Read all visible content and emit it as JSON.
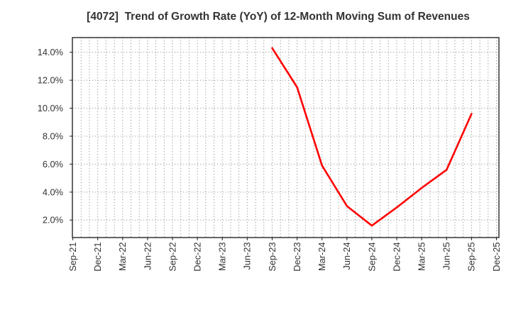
{
  "chart_data": {
    "type": "line",
    "title": "[4072]  Trend of Growth Rate (YoY) of 12-Month Moving Sum of Revenues",
    "x_tick_labels": [
      "Sep-21",
      "Dec-21",
      "Mar-22",
      "Jun-22",
      "Sep-22",
      "Dec-22",
      "Mar-23",
      "Jun-23",
      "Sep-23",
      "Dec-23",
      "Mar-24",
      "Jun-24",
      "Sep-24",
      "Dec-24",
      "Mar-25",
      "Jun-25",
      "Sep-25",
      "Dec-25"
    ],
    "months_per_tick": 3,
    "total_months": 52,
    "xlim_months": [
      -0.05,
      51.3
    ],
    "y_tick_values": [
      2,
      4,
      6,
      8,
      10,
      12,
      14
    ],
    "y_tick_labels": [
      "2.0%",
      "4.0%",
      "6.0%",
      "8.0%",
      "10.0%",
      "12.0%",
      "14.0%"
    ],
    "ylim": [
      0.75,
      15.05
    ],
    "grid": {
      "horizontal": "dotted at each y tick",
      "vertical": "dotted at every month"
    },
    "legend": null,
    "series": [
      {
        "color": "#ff0000",
        "points": [
          {
            "x": "Sep-23",
            "month": 24,
            "y": 14.3
          },
          {
            "x": "Dec-23",
            "month": 27,
            "y": 11.5
          },
          {
            "x": "Mar-24",
            "month": 30,
            "y": 5.9
          },
          {
            "x": "Jun-24",
            "month": 33,
            "y": 3.0
          },
          {
            "x": "Sep-24",
            "month": 36,
            "y": 1.6
          },
          {
            "x": "Dec-24",
            "month": 39,
            "y": 2.9
          },
          {
            "x": "Mar-25",
            "month": 42,
            "y": 4.3
          },
          {
            "x": "Jun-25",
            "month": 45,
            "y": 5.6
          },
          {
            "x": "Sep-25",
            "month": 48,
            "y": 9.6
          }
        ]
      }
    ],
    "colors": {
      "line": "#ff0000",
      "grid": "#8c8c8c",
      "axis": "#262626",
      "title": "#333333",
      "tick_label": "#333333",
      "background": "#ffffff"
    }
  }
}
